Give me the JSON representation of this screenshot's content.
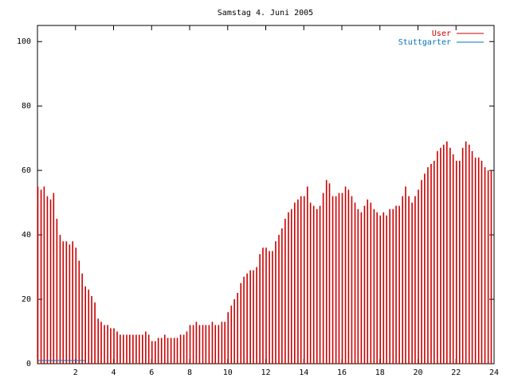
{
  "chart_data": {
    "type": "impulses",
    "title": "Samstag 4. Juni 2005",
    "x": [
      0,
      0.17,
      0.33,
      0.5,
      0.67,
      0.83,
      1,
      1.17,
      1.33,
      1.5,
      1.67,
      1.83,
      2,
      2.17,
      2.33,
      2.5,
      2.67,
      2.83,
      3,
      3.17,
      3.33,
      3.5,
      3.67,
      3.83,
      4,
      4.17,
      4.33,
      4.5,
      4.67,
      4.83,
      5,
      5.17,
      5.33,
      5.5,
      5.67,
      5.83,
      6,
      6.17,
      6.33,
      6.5,
      6.67,
      6.83,
      7,
      7.17,
      7.33,
      7.5,
      7.67,
      7.83,
      8,
      8.17,
      8.33,
      8.5,
      8.67,
      8.83,
      9,
      9.17,
      9.33,
      9.5,
      9.67,
      9.83,
      10,
      10.17,
      10.33,
      10.5,
      10.67,
      10.83,
      11,
      11.17,
      11.33,
      11.5,
      11.67,
      11.83,
      12,
      12.17,
      12.33,
      12.5,
      12.67,
      12.83,
      13,
      13.17,
      13.33,
      13.5,
      13.67,
      13.83,
      14,
      14.17,
      14.33,
      14.5,
      14.67,
      14.83,
      15,
      15.17,
      15.33,
      15.5,
      15.67,
      15.83,
      16,
      16.17,
      16.33,
      16.5,
      16.67,
      16.83,
      17,
      17.17,
      17.33,
      17.5,
      17.67,
      17.83,
      18,
      18.17,
      18.33,
      18.5,
      18.67,
      18.83,
      19,
      19.17,
      19.33,
      19.5,
      19.67,
      19.83,
      20,
      20.17,
      20.33,
      20.5,
      20.67,
      20.83,
      21,
      21.17,
      21.33,
      21.5,
      21.67,
      21.83,
      22,
      22.17,
      22.33,
      22.5,
      22.67,
      22.83,
      23,
      23.17,
      23.33,
      23.5,
      23.67,
      23.83
    ],
    "series": [
      {
        "name": "User",
        "color": "#cc0000",
        "style": "impulses",
        "values": [
          55,
          54,
          55,
          52,
          51,
          53,
          45,
          40,
          38,
          38,
          37,
          38,
          36,
          32,
          28,
          24,
          23,
          21,
          19,
          14,
          13,
          12,
          12,
          11,
          11,
          10,
          9,
          9,
          9,
          9,
          9,
          9,
          9,
          9,
          10,
          9,
          7,
          7,
          8,
          8,
          9,
          8,
          8,
          8,
          8,
          9,
          9,
          10,
          12,
          12,
          13,
          12,
          12,
          12,
          12,
          13,
          12,
          12,
          13,
          13,
          16,
          18,
          20,
          22,
          25,
          27,
          28,
          29,
          29,
          30,
          34,
          36,
          36,
          35,
          35,
          38,
          40,
          42,
          45,
          47,
          48,
          50,
          51,
          52,
          52,
          55,
          50,
          49,
          48,
          49,
          53,
          57,
          56,
          52,
          52,
          53,
          53,
          55,
          54,
          52,
          50,
          48,
          47,
          49,
          51,
          50,
          48,
          47,
          46,
          47,
          46,
          48,
          48,
          49,
          49,
          52,
          55,
          52,
          50,
          52,
          54,
          57,
          59,
          61,
          62,
          63,
          66,
          67,
          68,
          69,
          67,
          65,
          63,
          63,
          67,
          69,
          68,
          66,
          64,
          64,
          63,
          61,
          60,
          60
        ]
      },
      {
        "name": "Stuttgarter",
        "color": "#0070c0",
        "style": "line",
        "values": [
          1,
          1,
          1,
          1,
          1,
          1,
          1,
          1,
          1,
          1,
          1,
          1,
          1,
          1,
          1,
          1,
          null,
          null,
          null,
          null,
          null,
          null,
          null,
          null,
          null,
          null,
          null,
          null,
          null,
          null,
          null,
          null,
          null,
          null,
          null,
          null,
          null,
          null,
          null,
          null,
          null,
          null,
          null,
          null,
          null,
          null,
          null,
          null,
          null,
          null,
          null,
          null,
          null,
          null,
          null,
          null,
          null,
          null,
          null,
          null,
          null,
          null,
          null,
          null,
          null,
          null,
          null,
          null,
          null,
          null,
          null,
          null,
          null,
          null,
          null,
          null,
          null,
          null,
          null,
          null,
          null,
          null,
          null,
          null,
          null,
          null,
          null,
          null,
          null,
          null,
          null,
          null,
          null,
          null,
          null,
          null,
          null,
          null,
          null,
          null,
          null,
          null,
          null,
          null,
          null,
          null,
          null,
          null,
          null,
          null,
          null,
          null,
          null,
          null,
          null,
          null,
          null,
          null,
          null,
          null,
          null,
          null,
          null,
          null,
          null,
          null,
          null,
          null,
          null,
          null,
          null,
          null,
          null,
          null,
          null,
          null,
          null,
          null,
          null,
          null,
          null,
          null,
          null,
          null
        ]
      }
    ],
    "xlim": [
      0,
      24
    ],
    "xticks": [
      2,
      4,
      6,
      8,
      10,
      12,
      14,
      16,
      18,
      20,
      22,
      24
    ],
    "ylim": [
      0,
      105
    ],
    "yticks": [
      0,
      20,
      40,
      60,
      80,
      100
    ]
  }
}
